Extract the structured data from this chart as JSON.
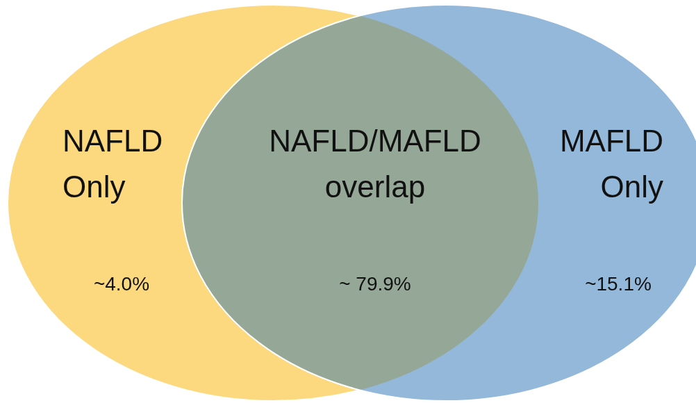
{
  "chart_data": {
    "type": "other",
    "categories": [
      "NAFLD Only",
      "NAFLD/MAFLD overlap",
      "MAFLD Only"
    ],
    "values": [
      4.0,
      79.9,
      15.1
    ],
    "value_labels": [
      "~4.0%",
      "~ 79.9%",
      "~15.1%"
    ],
    "colors": [
      "#fcd97f",
      "#95a897",
      "#94b8da"
    ]
  }
}
